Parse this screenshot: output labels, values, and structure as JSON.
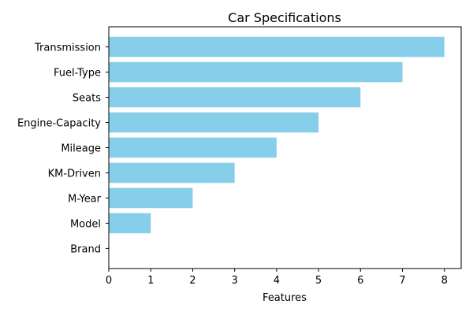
{
  "chart_data": {
    "type": "bar",
    "orientation": "horizontal",
    "title": "Car Specifications",
    "xlabel": "Features",
    "ylabel": "",
    "categories": [
      "Brand",
      "Model",
      "M-Year",
      "KM-Driven",
      "Mileage",
      "Engine-Capacity",
      "Seats",
      "Fuel-Type",
      "Transmission"
    ],
    "values": [
      0,
      1,
      2,
      3,
      4,
      5,
      6,
      7,
      8
    ],
    "xlim": [
      0,
      8.4
    ],
    "xticks": [
      0,
      1,
      2,
      3,
      4,
      5,
      6,
      7,
      8
    ],
    "grid": false,
    "bar_color": "#87CEEB"
  }
}
